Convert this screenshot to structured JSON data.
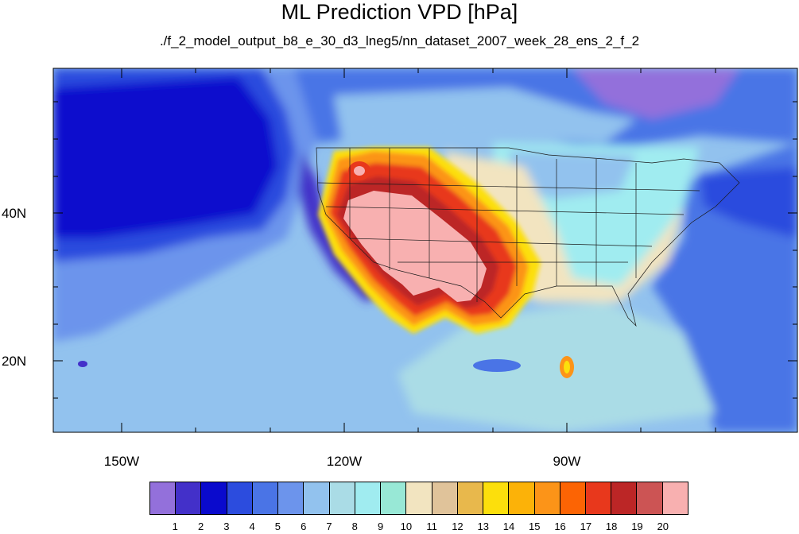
{
  "title": "ML Prediction VPD [hPa]",
  "subtitle": "./f_2_model_output_b8_e_30_d3_lneg5/nn_dataset_2007_week_28_ens_2_f_2",
  "axes": {
    "lat_labels": [
      "40N",
      "20N"
    ],
    "lon_labels": [
      "150W",
      "120W",
      "90W"
    ]
  },
  "colorbar": {
    "labels": [
      "1",
      "2",
      "3",
      "4",
      "5",
      "6",
      "7",
      "8",
      "9",
      "10",
      "11",
      "12",
      "13",
      "14",
      "15",
      "16",
      "17",
      "18",
      "19",
      "20"
    ],
    "colors": [
      "#9370db",
      "#4330c9",
      "#0a0acd",
      "#2c4cde",
      "#4a74e6",
      "#6c94ec",
      "#92c2ee",
      "#aadce6",
      "#a0ecf0",
      "#98e8d6",
      "#f2e4c0",
      "#e0c39a",
      "#e8b84c",
      "#fcdf0c",
      "#fcb208",
      "#fc9418",
      "#fc6404",
      "#e8381c",
      "#bc2626",
      "#cc5454",
      "#f8b0b0"
    ]
  },
  "colors": {
    "ocean_pacific_dark": "#0a0acd",
    "ocean_mid": "#4a74e6",
    "land_southwest": "#f8b0b0",
    "land_red": "#e8381c",
    "land_orange": "#fc9418",
    "land_tan": "#f2e4c0",
    "land_cyan": "#a0ecf0"
  }
}
